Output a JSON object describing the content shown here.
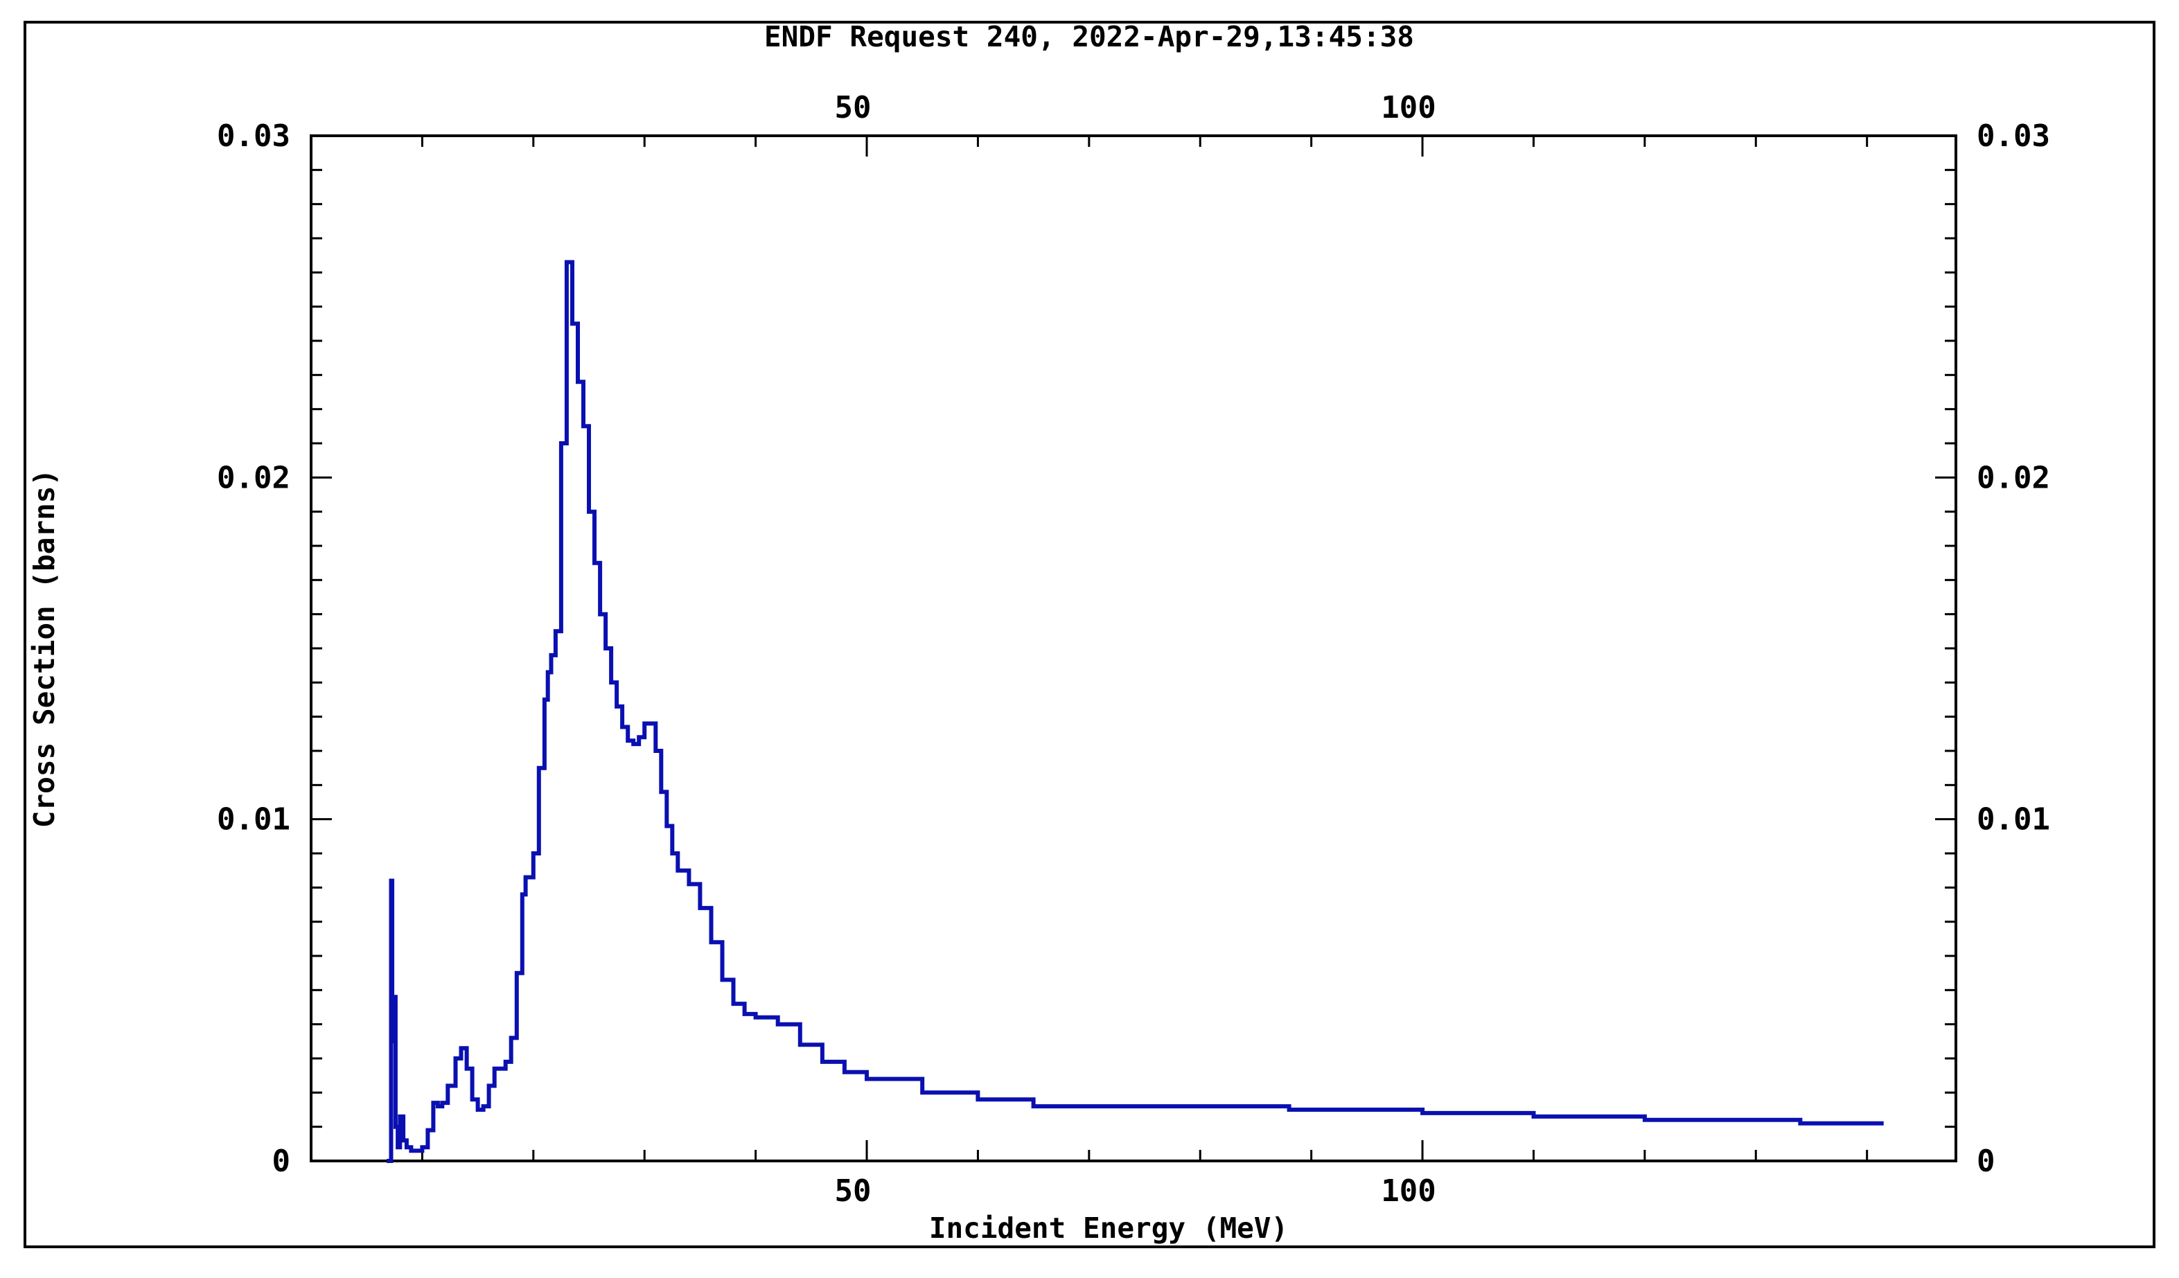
{
  "page": {
    "title": "ENDF Request 240, 2022-Apr-29,13:45:38"
  },
  "chart_data": {
    "type": "line",
    "title": "ENDF Request 240, 2022-Apr-29,13:45:38",
    "xlabel": "Incident Energy (MeV)",
    "ylabel": "Cross Section (barns)",
    "xlim": [
      0,
      148
    ],
    "ylim": [
      0,
      0.03
    ],
    "x_ticks": [
      50,
      100
    ],
    "y_ticks": [
      0,
      0.01,
      0.02,
      0.03
    ],
    "x_tick_labels": [
      "50",
      "100"
    ],
    "y_tick_labels": [
      "0",
      "0.01",
      "0.02",
      "0.03"
    ],
    "grid": false,
    "line_color": "#0a10b0",
    "series": [
      {
        "x": [
          6.8,
          7.2,
          7.3,
          7.5,
          7.6,
          7.8,
          8.0,
          8.3,
          8.6,
          9.0,
          9.5,
          10.0,
          10.5,
          11.0,
          11.4,
          11.8,
          12.3,
          13.0,
          13.5,
          14.0,
          14.5,
          15.0,
          15.5,
          16.0,
          16.5,
          17.0,
          17.5,
          18.0,
          18.5,
          19.0,
          19.3,
          19.6,
          20.0,
          20.5,
          21.0,
          21.3,
          21.6,
          22.0,
          22.5,
          23.0,
          23.5,
          24.0,
          24.5,
          25.0,
          25.5,
          26.0,
          26.5,
          27.0,
          27.5,
          28.0,
          28.5,
          29.0,
          29.5,
          30.0,
          30.5,
          31.0,
          31.5,
          32.0,
          32.5,
          33.0,
          34.0,
          35.0,
          36.0,
          37.0,
          38.0,
          39.0,
          40.0,
          42.0,
          44.0,
          46.0,
          48.0,
          50.0,
          55.0,
          60.0,
          65.0,
          75.0,
          88.0,
          100.0,
          110.0,
          120.0,
          134.0,
          141.5
        ],
        "y": [
          0.0,
          0.0082,
          0.0035,
          0.0048,
          0.001,
          0.0004,
          0.0013,
          0.0006,
          0.0004,
          0.0003,
          0.0003,
          0.0004,
          0.0009,
          0.0017,
          0.0016,
          0.0017,
          0.0022,
          0.003,
          0.0033,
          0.0027,
          0.0018,
          0.0015,
          0.0016,
          0.0022,
          0.0027,
          0.0027,
          0.0029,
          0.0036,
          0.0055,
          0.0078,
          0.0083,
          0.0083,
          0.009,
          0.0115,
          0.0135,
          0.0143,
          0.0148,
          0.0155,
          0.021,
          0.0263,
          0.0245,
          0.0228,
          0.0215,
          0.019,
          0.0175,
          0.016,
          0.015,
          0.014,
          0.0133,
          0.0127,
          0.0123,
          0.0122,
          0.0124,
          0.0128,
          0.0128,
          0.012,
          0.0108,
          0.0098,
          0.009,
          0.0085,
          0.0081,
          0.0074,
          0.0064,
          0.0053,
          0.0046,
          0.0043,
          0.0042,
          0.004,
          0.0034,
          0.0029,
          0.0026,
          0.0024,
          0.002,
          0.0018,
          0.0016,
          0.0016,
          0.0015,
          0.0014,
          0.0013,
          0.0012,
          0.0011,
          0.0011
        ]
      }
    ]
  }
}
